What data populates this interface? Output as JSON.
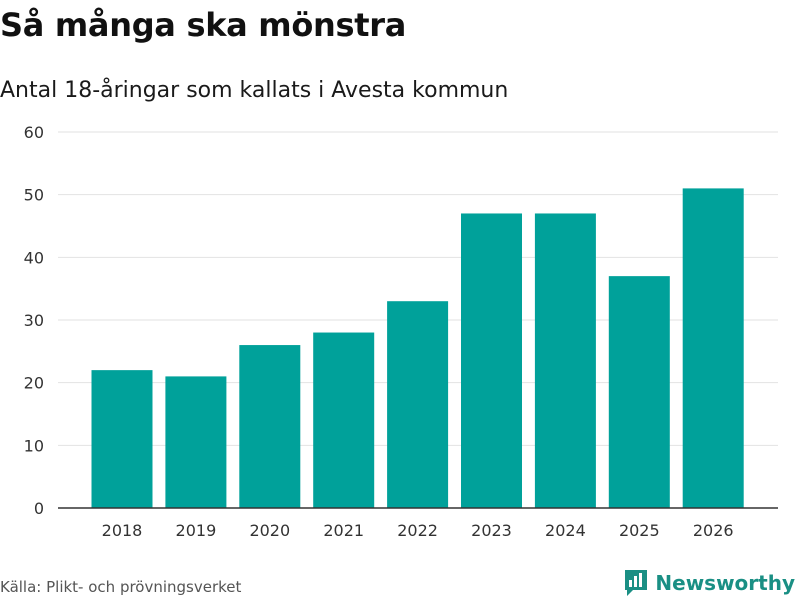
{
  "title": "Så många ska mönstra",
  "subtitle": "Antal 18-åringar som kallats i Avesta kommun",
  "source": "Källa: Plikt- och prövningsverket",
  "brand": {
    "name": "Newsworthy",
    "icon": "newsworthy-logo-icon"
  },
  "colors": {
    "bar": "#00a19a",
    "grid": "#e2e2e2",
    "axis": "#333333",
    "brand": "#1a8f84"
  },
  "chart_data": {
    "type": "bar",
    "title": "Så många ska mönstra",
    "subtitle": "Antal 18-åringar som kallats i Avesta kommun",
    "xlabel": "",
    "ylabel": "",
    "categories": [
      "2018",
      "2019",
      "2020",
      "2021",
      "2022",
      "2023",
      "2024",
      "2025",
      "2026"
    ],
    "values": [
      22,
      21,
      26,
      28,
      33,
      47,
      47,
      37,
      51
    ],
    "ylim": [
      0,
      60
    ],
    "yticks": [
      0,
      10,
      20,
      30,
      40,
      50,
      60
    ],
    "grid": true,
    "legend": "none"
  }
}
